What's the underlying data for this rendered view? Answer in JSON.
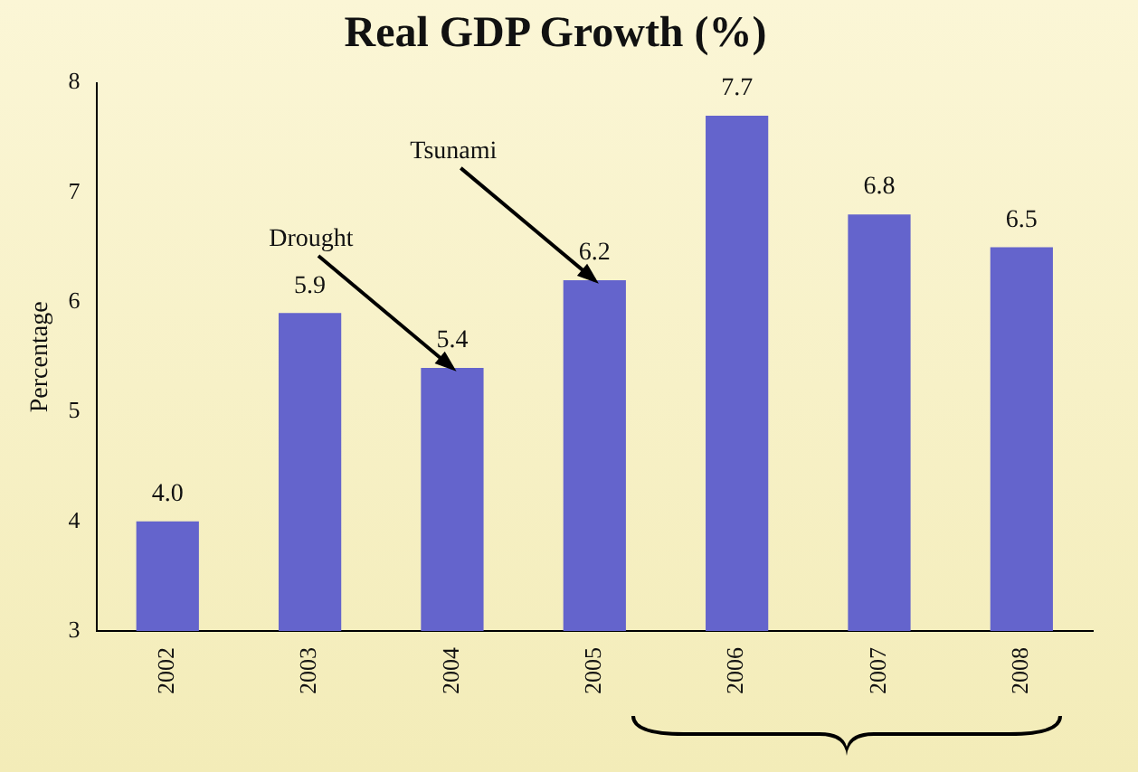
{
  "chart_data": {
    "type": "bar",
    "title": "Real GDP Growth (%)",
    "ylabel": "Percentage",
    "categories": [
      "2002",
      "2003",
      "2004",
      "2005",
      "2006",
      "2007",
      "2008"
    ],
    "values": [
      4.0,
      5.9,
      5.4,
      6.2,
      7.7,
      6.8,
      6.5
    ],
    "color": "#6464cc",
    "ylim": [
      3,
      8
    ],
    "yticks": [
      3,
      4,
      5,
      6,
      7,
      8
    ],
    "data_labels": true,
    "grid": false,
    "legend": false,
    "value_labels": [
      "4.0",
      "5.9",
      "5.4",
      "6.2",
      "7.7",
      "6.8",
      "6.5"
    ],
    "annotations": [
      {
        "text": "Drought",
        "x": "2004",
        "y": 5.4
      },
      {
        "text": "Tsunami",
        "x": "2005",
        "y": 6.2
      }
    ]
  }
}
